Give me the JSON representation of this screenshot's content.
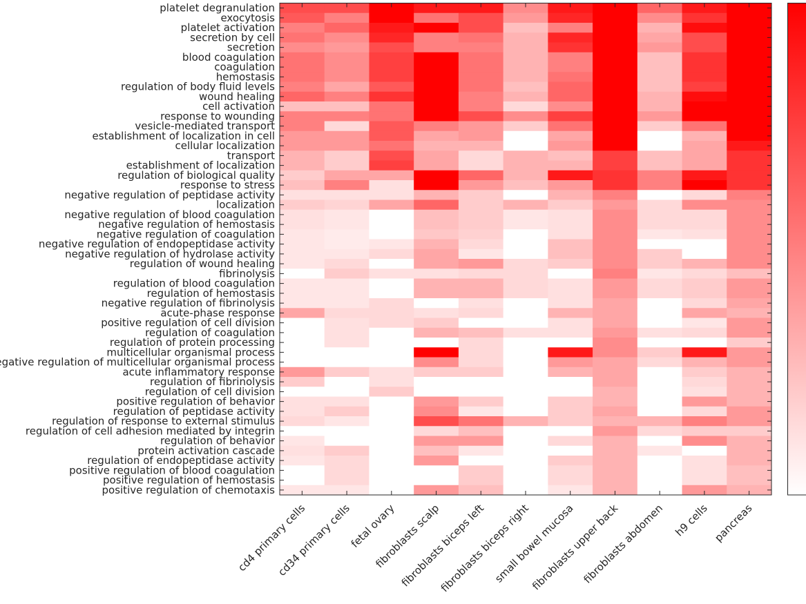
{
  "chart_data": {
    "type": "heatmap",
    "title": "",
    "xlabel": "",
    "ylabel": "",
    "colormap": {
      "low": "#ffffff",
      "high": "#ff0000"
    },
    "value_range": [
      0,
      1
    ],
    "colorbar": true,
    "grid": false,
    "columns": [
      "cd4 primary cells",
      "cd34 primary cells",
      "fetal ovary",
      "fibroblasts scalp",
      "fibroblasts biceps left",
      "fibroblasts biceps right",
      "small bowel mucosa",
      "fibroblasts upper back",
      "fibroblasts abdomen",
      "h9 cells",
      "pancreas"
    ],
    "rows": [
      "platelet degranulation",
      "exocytosis",
      "platelet activation",
      "secretion by cell",
      "secretion",
      "blood coagulation",
      "coagulation",
      "hemostasis",
      "regulation of body fluid levels",
      "wound healing",
      "cell activation",
      "response to wounding",
      "vesicle-mediated transport",
      "establishment of localization in cell",
      "cellular localization",
      "transport",
      "establishment of localization",
      "regulation of biological quality",
      "response to stress",
      "negative regulation of peptidase activity",
      "localization",
      "negative regulation of blood coagulation",
      "negative regulation of hemostasis",
      "negative regulation of coagulation",
      "negative regulation of endopeptidase activity",
      "negative regulation of hydrolase activity",
      "regulation of wound healing",
      "fibrinolysis",
      "regulation of blood coagulation",
      "regulation of hemostasis",
      "negative regulation of fibrinolysis",
      "acute-phase response",
      "positive regulation of cell division",
      "regulation of coagulation",
      "regulation of protein processing",
      "multicellular organismal process",
      "negative regulation of multicellular organismal process",
      "acute inflammatory response",
      "regulation of fibrinolysis",
      "regulation of cell division",
      "positive regulation of behavior",
      "regulation of peptidase activity",
      "regulation of response to external stimulus",
      "regulation of cell adhesion mediated by integrin",
      "regulation of behavior",
      "protein activation cascade",
      "regulation of endopeptidase activity",
      "positive regulation of blood coagulation",
      "positive regulation of hemostasis",
      "positive regulation of chemotaxis"
    ],
    "values": [
      [
        0.7,
        0.7,
        1,
        0.9,
        0.9,
        0.45,
        0.9,
        1,
        0.6,
        0.9,
        1
      ],
      [
        0.65,
        0.5,
        1,
        0.55,
        0.7,
        0.4,
        0.85,
        1,
        0.45,
        0.8,
        1
      ],
      [
        0.5,
        0.6,
        0.9,
        1,
        0.7,
        0.25,
        0.5,
        1,
        0.3,
        0.95,
        1
      ],
      [
        0.55,
        0.45,
        0.85,
        0.5,
        0.55,
        0.3,
        0.85,
        1,
        0.35,
        0.7,
        1
      ],
      [
        0.45,
        0.4,
        0.7,
        0.5,
        0.5,
        0.3,
        0.8,
        1,
        0.4,
        0.7,
        1
      ],
      [
        0.55,
        0.45,
        0.75,
        1,
        0.55,
        0.3,
        0.5,
        1,
        0.25,
        0.8,
        1
      ],
      [
        0.55,
        0.45,
        0.75,
        1,
        0.55,
        0.3,
        0.5,
        1,
        0.25,
        0.8,
        1
      ],
      [
        0.55,
        0.45,
        0.75,
        1,
        0.55,
        0.3,
        0.55,
        1,
        0.25,
        0.8,
        1
      ],
      [
        0.5,
        0.35,
        0.65,
        1,
        0.55,
        0.25,
        0.6,
        1,
        0.25,
        0.75,
        1
      ],
      [
        0.6,
        0.5,
        0.8,
        1,
        0.5,
        0.3,
        0.6,
        1,
        0.3,
        0.95,
        1
      ],
      [
        0.25,
        0.25,
        0.55,
        1,
        0.5,
        0.15,
        0.45,
        1,
        0.3,
        1,
        1
      ],
      [
        0.5,
        0.5,
        0.55,
        1,
        0.7,
        0.45,
        0.75,
        1,
        0.4,
        1,
        1
      ],
      [
        0.5,
        0.15,
        0.65,
        0.5,
        0.4,
        0.2,
        0.55,
        1,
        0.2,
        0.55,
        1
      ],
      [
        0.4,
        0.4,
        0.65,
        0.35,
        0.4,
        0,
        0.35,
        1,
        0,
        0.3,
        1
      ],
      [
        0.4,
        0.4,
        0.55,
        0.3,
        0.3,
        0,
        0.4,
        1,
        0,
        0.35,
        0.9
      ],
      [
        0.3,
        0.2,
        0.7,
        0.35,
        0.15,
        0.3,
        0.25,
        0.75,
        0.25,
        0.35,
        0.8
      ],
      [
        0.3,
        0.2,
        0.75,
        0.35,
        0.15,
        0.3,
        0.3,
        0.75,
        0.25,
        0.35,
        0.8
      ],
      [
        0.2,
        0.35,
        0.35,
        1,
        0.6,
        0.3,
        0.9,
        0.8,
        0.5,
        0.9,
        0.8
      ],
      [
        0.25,
        0.5,
        0.12,
        1,
        0.4,
        0.25,
        0.4,
        0.8,
        0.5,
        1,
        0.8
      ],
      [
        0.12,
        0.12,
        0.12,
        0.3,
        0.2,
        0,
        0.3,
        0.5,
        0,
        0.15,
        0.5
      ],
      [
        0.2,
        0.17,
        0.35,
        0.6,
        0.2,
        0.3,
        0.2,
        0.4,
        0.15,
        0.45,
        0.45
      ],
      [
        0.12,
        0.1,
        0,
        0.25,
        0.2,
        0.1,
        0.12,
        0.45,
        0.15,
        0.15,
        0.45
      ],
      [
        0.12,
        0.1,
        0,
        0.25,
        0.2,
        0.1,
        0.12,
        0.45,
        0.15,
        0.15,
        0.45
      ],
      [
        0.1,
        0.08,
        0,
        0.22,
        0.18,
        0,
        0.12,
        0.45,
        0.1,
        0.12,
        0.45
      ],
      [
        0.1,
        0.08,
        0.1,
        0.3,
        0.15,
        0,
        0.25,
        0.45,
        0,
        0,
        0.45
      ],
      [
        0.1,
        0.1,
        0.15,
        0.35,
        0.1,
        0,
        0.25,
        0.45,
        0.2,
        0,
        0.45
      ],
      [
        0.1,
        0.15,
        0,
        0.35,
        0.4,
        0.15,
        0.2,
        0.45,
        0.2,
        0.3,
        0.45
      ],
      [
        0,
        0.2,
        0.12,
        0.12,
        0.15,
        0.15,
        0,
        0.5,
        0.1,
        0.15,
        0.25
      ],
      [
        0.1,
        0.1,
        0,
        0.3,
        0.3,
        0.15,
        0.12,
        0.4,
        0.15,
        0.2,
        0.4
      ],
      [
        0.1,
        0.1,
        0,
        0.3,
        0.3,
        0.15,
        0.12,
        0.4,
        0.15,
        0.2,
        0.4
      ],
      [
        0.1,
        0.1,
        0.15,
        0,
        0.12,
        0,
        0.12,
        0.35,
        0,
        0.15,
        0.35
      ],
      [
        0.35,
        0.15,
        0.15,
        0.12,
        0.15,
        0,
        0.3,
        0.35,
        0,
        0.35,
        0.3
      ],
      [
        0,
        0.12,
        0.15,
        0.2,
        0,
        0,
        0.12,
        0.35,
        0,
        0.1,
        0.4
      ],
      [
        0,
        0.12,
        0,
        0.3,
        0.25,
        0.12,
        0.12,
        0.4,
        0.12,
        0.15,
        0.4
      ],
      [
        0,
        0.12,
        0,
        0,
        0.15,
        0,
        0,
        0.45,
        0,
        0,
        0.2
      ],
      [
        0,
        0,
        0,
        1,
        0.15,
        0,
        0.9,
        0.45,
        0.2,
        0.9,
        0.4
      ],
      [
        0,
        0,
        0,
        0.45,
        0.15,
        0,
        0.4,
        0.35,
        0.15,
        0.3,
        0.4
      ],
      [
        0.4,
        0.2,
        0.12,
        0.2,
        0.2,
        0,
        0.3,
        0.35,
        0,
        0.2,
        0.3
      ],
      [
        0.2,
        0,
        0.12,
        0,
        0,
        0,
        0,
        0.35,
        0,
        0.15,
        0.3
      ],
      [
        0,
        0,
        0.2,
        0,
        0,
        0,
        0,
        0.3,
        0,
        0.12,
        0.3
      ],
      [
        0.12,
        0.12,
        0,
        0.4,
        0.2,
        0,
        0.2,
        0.3,
        0,
        0.4,
        0.3
      ],
      [
        0.12,
        0.2,
        0,
        0.45,
        0.1,
        0,
        0.2,
        0.35,
        0,
        0.15,
        0.4
      ],
      [
        0.15,
        0.1,
        0,
        0.7,
        0.55,
        0.3,
        0.2,
        0.3,
        0.3,
        0.5,
        0.4
      ],
      [
        0,
        0,
        0,
        0.15,
        0.25,
        0,
        0,
        0.4,
        0.15,
        0.2,
        0.2
      ],
      [
        0.1,
        0,
        0,
        0.4,
        0.4,
        0,
        0.15,
        0.3,
        0,
        0.45,
        0.3
      ],
      [
        0.12,
        0.2,
        0,
        0.25,
        0.1,
        0,
        0,
        0.3,
        0.1,
        0,
        0.3
      ],
      [
        0.1,
        0.15,
        0,
        0.4,
        0,
        0,
        0.2,
        0.3,
        0,
        0.12,
        0.3
      ],
      [
        0,
        0.15,
        0,
        0,
        0.2,
        0,
        0.15,
        0.3,
        0,
        0.12,
        0.25
      ],
      [
        0,
        0.15,
        0,
        0,
        0.2,
        0,
        0.15,
        0.3,
        0,
        0.12,
        0.25
      ],
      [
        0.1,
        0.1,
        0,
        0.4,
        0.25,
        0,
        0.1,
        0.3,
        0,
        0.4,
        0.3
      ]
    ]
  }
}
